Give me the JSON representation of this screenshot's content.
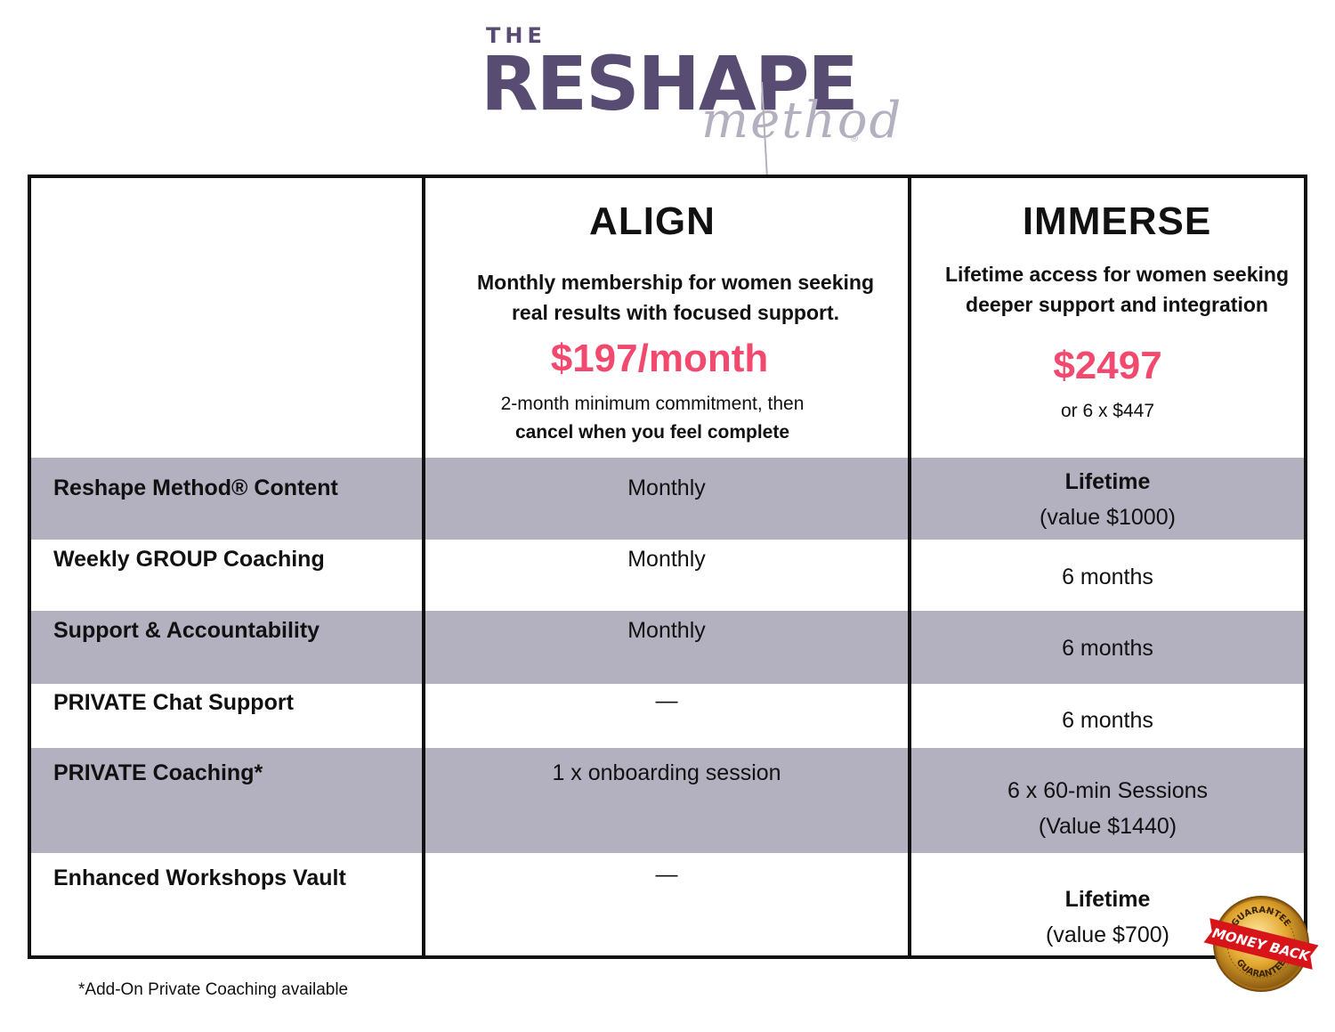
{
  "logo": {
    "the": "THE",
    "main": "RESHAPE",
    "sub": "method",
    "reg": "®"
  },
  "plans": [
    {
      "name": "ALIGN",
      "desc_line1": "Monthly membership for women seeking",
      "desc_line2": "real results with focused support.",
      "price": "$197/month",
      "note_line1": "2-month minimum commitment, then",
      "note_line2": "cancel when you feel complete"
    },
    {
      "name": "IMMERSE",
      "desc_line1": "Lifetime access for women seeking",
      "desc_line2": "deeper support and integration",
      "price": "$2497",
      "note_line1": "or 6 x $447"
    }
  ],
  "rows": [
    {
      "label": "Reshape Method® Content",
      "align": "Monthly",
      "immerse_line1": "Lifetime",
      "immerse_line2": "(value $1000)"
    },
    {
      "label": "Weekly GROUP Coaching",
      "align": "Monthly",
      "immerse_line1": "6 months"
    },
    {
      "label": "Support & Accountability",
      "align": "Monthly",
      "immerse_line1": "6 months"
    },
    {
      "label": "PRIVATE Chat Support",
      "align": "—",
      "immerse_line1": "6 months"
    },
    {
      "label": "PRIVATE Coaching*",
      "align": "1 x onboarding session",
      "immerse_line1": "6 x 60-min Sessions",
      "immerse_line2": "(Value $1440)"
    },
    {
      "label": "Enhanced Workshops Vault",
      "align": "—",
      "immerse_line1": "Lifetime",
      "immerse_line2": "(value $700)"
    }
  ],
  "footnote": "*Add-On Private Coaching available",
  "badge": {
    "top": "GUARANTEE",
    "middle": "MONEY BACK",
    "bottom": "GUARANTEE"
  },
  "colors": {
    "brand": "#584c72",
    "brand_light": "#b5b0bf",
    "price": "#f2496e",
    "row_shade": "#b3b0bf",
    "badge_red": "#d8141b",
    "badge_gold": "#e3a72f"
  }
}
